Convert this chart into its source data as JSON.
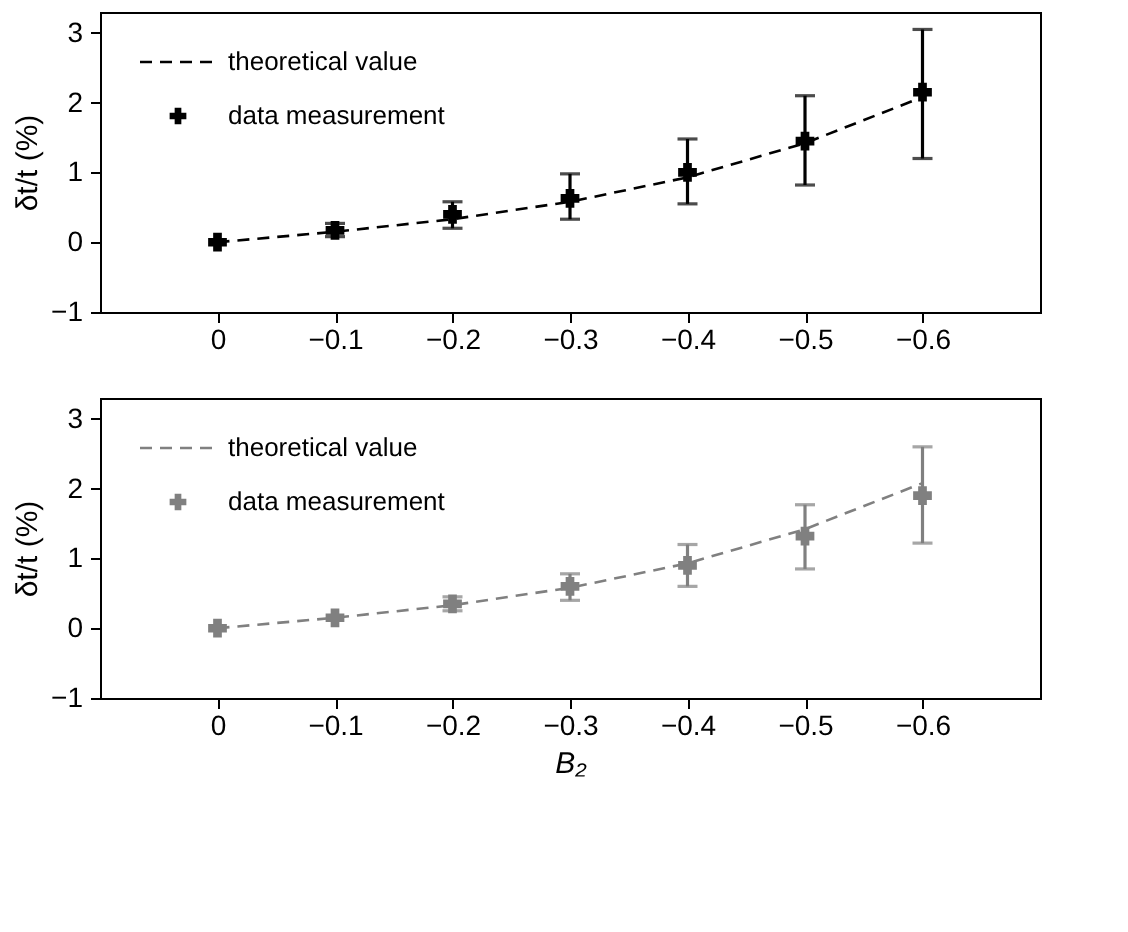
{
  "chart_data": [
    {
      "type": "scatter",
      "ylabel": "δt/t (%)",
      "x": [
        0,
        -0.1,
        -0.2,
        -0.3,
        -0.4,
        -0.5,
        -0.6
      ],
      "xlim": [
        0.1,
        -0.7
      ],
      "ylim": [
        -1,
        3.3
      ],
      "xticks": [
        0,
        {
          "value": -0.1,
          "label": "−0.1"
        },
        {
          "value": -0.2,
          "label": "−0.2"
        },
        {
          "value": -0.3,
          "label": "−0.3"
        },
        {
          "value": -0.4,
          "label": "−0.4"
        },
        {
          "value": -0.5,
          "label": "−0.5"
        },
        {
          "value": -0.6,
          "label": "−0.6"
        }
      ],
      "yticks": [
        {
          "value": -1,
          "label": "−1"
        },
        0,
        1,
        2,
        3
      ],
      "grid": false,
      "legend": "top left",
      "series": [
        {
          "name": "theoretical value",
          "type": "line",
          "color": "#000000",
          "line_style": "dashed",
          "marker": "none",
          "values": [
            0,
            0.15,
            0.33,
            0.58,
            0.93,
            1.42,
            2.08
          ]
        },
        {
          "name": "data measurement",
          "type": "scatter",
          "color": "#000000",
          "marker": "cross",
          "values": [
            0,
            0.17,
            0.4,
            0.63,
            1.0,
            1.45,
            2.15
          ],
          "errors": [
            null,
            [
              0.08,
              0.27
            ],
            [
              0.2,
              0.58
            ],
            [
              0.33,
              0.98
            ],
            [
              0.55,
              1.48
            ],
            [
              0.82,
              2.1
            ],
            [
              1.2,
              3.05
            ]
          ]
        }
      ]
    },
    {
      "type": "scatter",
      "ylabel": "δt/t (%)",
      "xlabel": "B₂",
      "x": [
        0,
        -0.1,
        -0.2,
        -0.3,
        -0.4,
        -0.5,
        -0.6
      ],
      "xlim": [
        0.1,
        -0.7
      ],
      "ylim": [
        -1,
        3.3
      ],
      "xticks": [
        0,
        {
          "value": -0.1,
          "label": "−0.1"
        },
        {
          "value": -0.2,
          "label": "−0.2"
        },
        {
          "value": -0.3,
          "label": "−0.3"
        },
        {
          "value": -0.4,
          "label": "−0.4"
        },
        {
          "value": -0.5,
          "label": "−0.5"
        },
        {
          "value": -0.6,
          "label": "−0.6"
        }
      ],
      "yticks": [
        {
          "value": -1,
          "label": "−1"
        },
        0,
        1,
        2,
        3
      ],
      "grid": false,
      "legend": "top left",
      "series": [
        {
          "name": "theoretical value",
          "type": "line",
          "color": "#808080",
          "line_style": "dashed",
          "marker": "none",
          "values": [
            0,
            0.15,
            0.33,
            0.58,
            0.93,
            1.42,
            2.08
          ]
        },
        {
          "name": "data measurement",
          "type": "scatter",
          "color": "#808080",
          "marker": "cross",
          "values": [
            0,
            0.15,
            0.35,
            0.6,
            0.9,
            1.32,
            1.9
          ],
          "errors": [
            null,
            null,
            [
              0.25,
              0.45
            ],
            [
              0.4,
              0.78
            ],
            [
              0.6,
              1.2
            ],
            [
              0.85,
              1.77
            ],
            [
              1.22,
              2.6
            ]
          ]
        }
      ]
    }
  ]
}
